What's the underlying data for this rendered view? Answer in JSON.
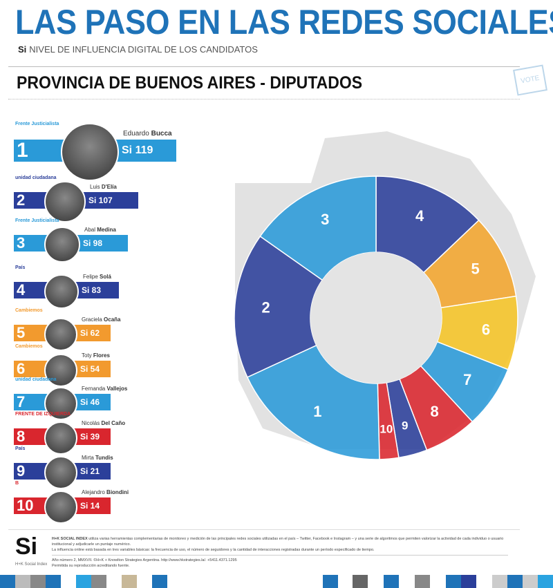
{
  "header": {
    "title": "LAS PASO EN LAS REDES SOCIALES",
    "si_mark": "Si",
    "subtitle": "NIVEL DE INFLUENCIA DIGITAL DE LOS CANDIDATOS",
    "section": "PROVINCIA DE BUENOS AIRES - DIPUTADOS",
    "vote_label": "VOTE"
  },
  "candidates": [
    {
      "rank": "1",
      "first": "Eduardo",
      "last": "Bucca",
      "score": "Si 119",
      "party": "Frente Justicialista",
      "color": "#2a9ad8"
    },
    {
      "rank": "2",
      "first": "Luis",
      "last": "D'Elía",
      "score": "Si 107",
      "party": "unidad ciudadana",
      "color": "#2b3f9a"
    },
    {
      "rank": "3",
      "first": "Abal",
      "last": "Medina",
      "score": "Si 98",
      "party": "Frente Justicialista",
      "color": "#2a9ad8"
    },
    {
      "rank": "4",
      "first": "Felipe",
      "last": "Solá",
      "score": "Si 83",
      "party": "País",
      "color": "#2b3f9a"
    },
    {
      "rank": "5",
      "first": "Graciela",
      "last": "Ocaña",
      "score": "Si 62",
      "party": "Cambiemos",
      "color": "#f29a2e"
    },
    {
      "rank": "6",
      "first": "Toty",
      "last": "Flores",
      "score": "Si 54",
      "party": "Cambiemos",
      "color": "#f29a2e"
    },
    {
      "rank": "7",
      "first": "Fernanda",
      "last": "Vallejos",
      "score": "Si 46",
      "party": "unidad ciudadana",
      "color": "#2a9ad8"
    },
    {
      "rank": "8",
      "first": "Nicolás",
      "last": "Del Caño",
      "score": "Si 39",
      "party": "FRENTE DE IZQUIERDA",
      "color": "#d9262e"
    },
    {
      "rank": "9",
      "first": "Mirta",
      "last": "Tundis",
      "score": "Si 21",
      "party": "País",
      "color": "#2b3f9a"
    },
    {
      "rank": "10",
      "first": "Alejandro",
      "last": "Biondini",
      "score": "Si 14",
      "party": "B",
      "color": "#d9262e"
    }
  ],
  "chart_data": {
    "type": "pie",
    "style": "donut",
    "order_clockwise_from_top": [
      "4",
      "5",
      "6",
      "7",
      "8",
      "9",
      "10",
      "1",
      "2",
      "3"
    ],
    "categories": [
      "1",
      "2",
      "3",
      "4",
      "5",
      "6",
      "7",
      "8",
      "9",
      "10"
    ],
    "values": [
      119,
      107,
      98,
      83,
      62,
      54,
      46,
      39,
      21,
      14
    ],
    "colors": [
      "#2a9ad8",
      "#2b3f9a",
      "#2a9ad8",
      "#2b3f9a",
      "#f2a52e",
      "#f5c425",
      "#2a9ad8",
      "#d9262e",
      "#2b3f9a",
      "#d9262e"
    ]
  },
  "footer": {
    "logo": "Si",
    "logo_caption": "H+K Social Index",
    "brand": "H+K SOCIAL INDEX",
    "text1": "utiliza varias herramientas complementarias de monitoreo y medición de las principales redes sociales utilizadas en el país – Twitter, Facebook e Instagram – y una serie de algoritmos que permiten valorizar la actividad de cada individuo o usuario institucional y adjudicarle un puntaje numérico.",
    "text2": "La influencia online está basada en tres variables básicas: la frecuencia de uso, el número de seguidores y la cantidad de interacciones registradas durante un período especificado de tiempo.",
    "text3": "Año número 2, MMXVII. ©H+K + Knowlton Strategies Argentina. http://www.hkstrategies.la/. +5411.4371.1295",
    "text4": "Permitida su reproducción acreditando fuente."
  }
}
